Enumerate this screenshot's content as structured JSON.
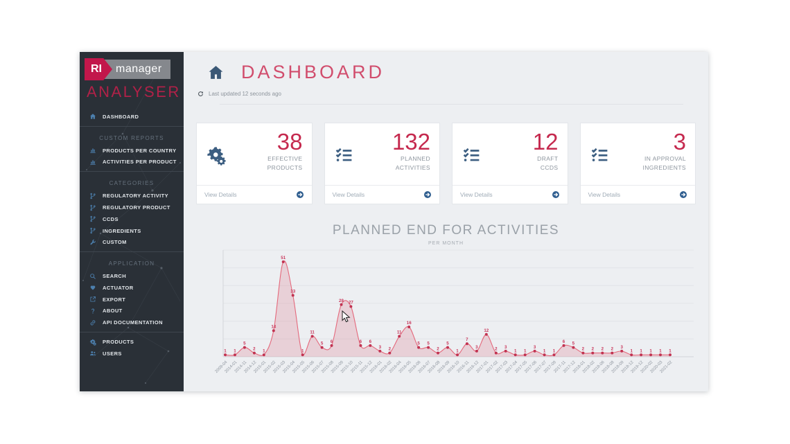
{
  "colors": {
    "accent": "#c5294e",
    "sidebar_bg": "#2a3037",
    "icon_blue": "#4c7fad",
    "content_bg": "#edeff2",
    "chart_line": "#e4697c",
    "chart_fill": "rgba(216,98,120,0.22)",
    "chart_point": "#c13351",
    "chart_label": "#c9365a"
  },
  "sidebar": {
    "logo": {
      "brand_left": "RI",
      "brand_right": "manager",
      "product": "ANALYSER"
    },
    "nav": [
      {
        "type": "item",
        "label": "DASHBOARD",
        "icon": "home"
      },
      {
        "type": "divider"
      },
      {
        "type": "header",
        "label": "CUSTOM REPORTS"
      },
      {
        "type": "item",
        "label": "PRODUCTS PER COUNTRY",
        "icon": "chart-bar"
      },
      {
        "type": "item",
        "label": "ACTIVITIES PER PRODUCT",
        "icon": "chart-bar"
      },
      {
        "type": "divider"
      },
      {
        "type": "header",
        "label": "CATEGORIES"
      },
      {
        "type": "item",
        "label": "REGULATORY ACTIVITY",
        "icon": "code-branch"
      },
      {
        "type": "item",
        "label": "REGULATORY PRODUCT",
        "icon": "code-branch"
      },
      {
        "type": "item",
        "label": "CCDS",
        "icon": "code-branch"
      },
      {
        "type": "item",
        "label": "INGREDIENTS",
        "icon": "code-branch"
      },
      {
        "type": "item",
        "label": "CUSTOM",
        "icon": "wrench"
      },
      {
        "type": "divider"
      },
      {
        "type": "header",
        "label": "APPLICATION"
      },
      {
        "type": "item",
        "label": "SEARCH",
        "icon": "search"
      },
      {
        "type": "item",
        "label": "ACTUATOR",
        "icon": "heart"
      },
      {
        "type": "item",
        "label": "EXPORT",
        "icon": "external-link"
      },
      {
        "type": "item",
        "label": "ABOUT",
        "icon": "question"
      },
      {
        "type": "item",
        "label": "API DOCUMENTATION",
        "icon": "link"
      },
      {
        "type": "divider"
      },
      {
        "type": "item",
        "label": "PRODUCTS",
        "icon": "cogs"
      },
      {
        "type": "item",
        "label": "USERS",
        "icon": "users"
      }
    ]
  },
  "header": {
    "title": "DASHBOARD",
    "icon": "home",
    "refresh_icon": "refresh",
    "last_updated": "Last updated 12 seconds ago"
  },
  "cards": [
    {
      "icon": "cogs",
      "value": "38",
      "label_lines": [
        "EFFECTIVE",
        "PRODUCTS"
      ],
      "footer": "View Details",
      "footer_icon": "arrow-circle-right"
    },
    {
      "icon": "checklist",
      "value": "132",
      "label_lines": [
        "PLANNED",
        "ACTIVITIES"
      ],
      "footer": "View Details",
      "footer_icon": "arrow-circle-right"
    },
    {
      "icon": "checklist",
      "value": "12",
      "label_lines": [
        "DRAFT",
        "CCDS"
      ],
      "footer": "View Details",
      "footer_icon": "arrow-circle-right"
    },
    {
      "icon": "checklist",
      "value": "3",
      "label_lines": [
        "IN APPROVAL",
        "INGREDIENTS"
      ],
      "footer": "View Details",
      "footer_icon": "arrow-circle-right"
    }
  ],
  "chart_data": {
    "type": "area",
    "title": "PLANNED END FOR ACTIVITIES",
    "subtitle": "PER MONTH",
    "categories": [
      "2009-04",
      "2014-01",
      "2014-11",
      "2014-12",
      "2015-01",
      "2015-02",
      "2015-03",
      "2015-04",
      "2015-05",
      "2015-06",
      "2015-07",
      "2015-08",
      "2015-09",
      "2015-10",
      "2015-11",
      "2015-12",
      "2016-01",
      "2016-02",
      "2016-04",
      "2016-05",
      "2016-06",
      "2016-07",
      "2016-08",
      "2016-09",
      "2016-10",
      "2016-11",
      "2016-12",
      "2017-01",
      "2017-02",
      "2017-03",
      "2017-04",
      "2017-05",
      "2017-06",
      "2017-07",
      "2017-09",
      "2017-11",
      "2017-12",
      "2018-01",
      "2018-02",
      "2018-06",
      "2018-08",
      "2018-09",
      "2018-12",
      "2019-12",
      "2020-02",
      "2020-03",
      "2021-02"
    ],
    "values": [
      1,
      1,
      5,
      2,
      1,
      14,
      51,
      33,
      1,
      11,
      5,
      6,
      28,
      27,
      6,
      6,
      3,
      2,
      11,
      16,
      5,
      5,
      2,
      5,
      1,
      7,
      3,
      12,
      2,
      3,
      1,
      1,
      3,
      1,
      1,
      6,
      5,
      2,
      2,
      2,
      2,
      3,
      1,
      1,
      1,
      1,
      1
    ],
    "ylim": [
      0,
      57
    ],
    "grid": true,
    "point_labels": true,
    "legend": "none"
  }
}
